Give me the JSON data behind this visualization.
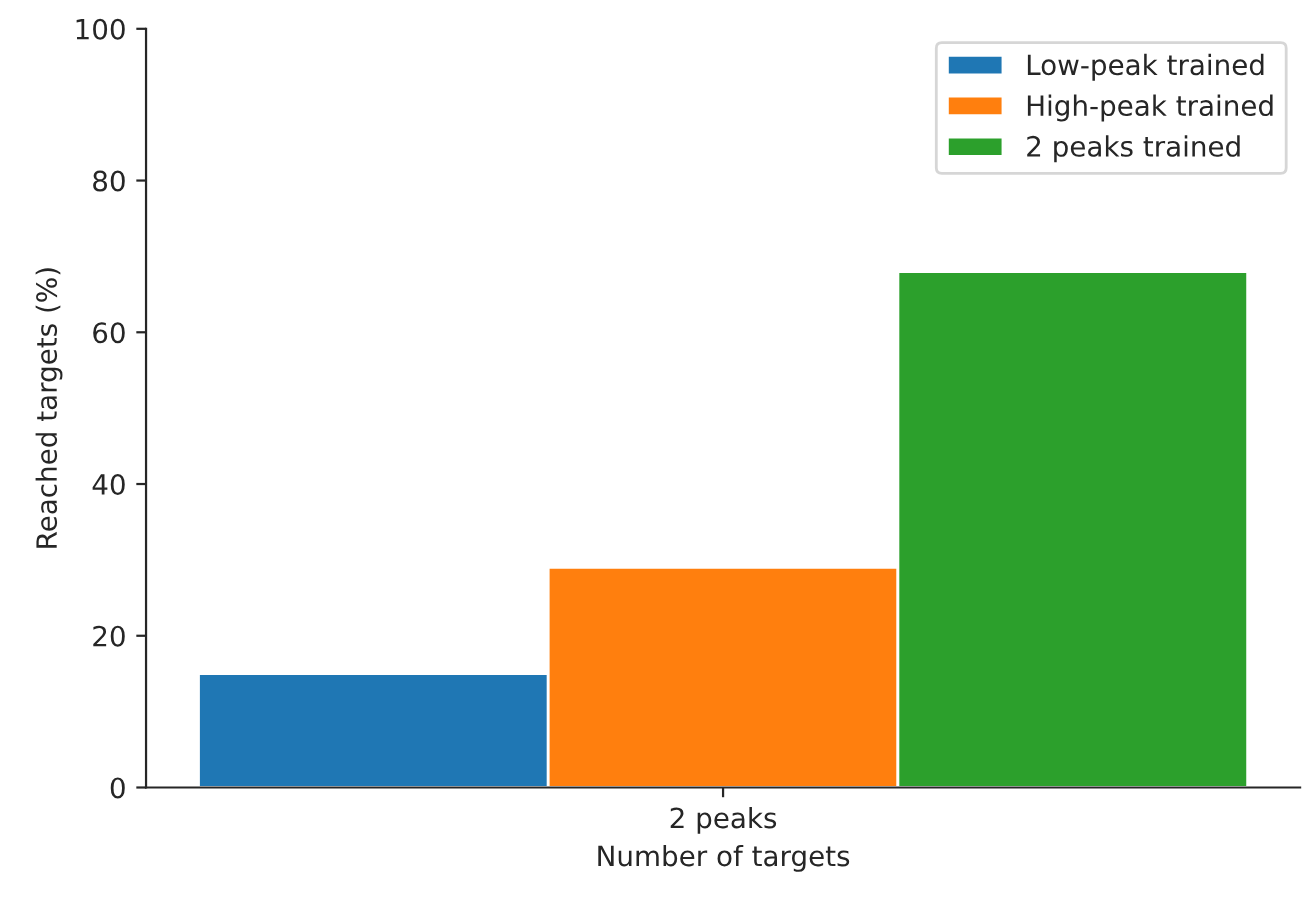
{
  "chart_data": {
    "type": "bar",
    "xlabel": "Number of targets",
    "ylabel": "Reached targets (%)",
    "categories": [
      "2 peaks"
    ],
    "series": [
      {
        "name": "Low-peak trained",
        "color": "#1f77b4",
        "values": [
          15
        ]
      },
      {
        "name": "High-peak trained",
        "color": "#ff7f0e",
        "values": [
          29
        ]
      },
      {
        "name": "2 peaks trained",
        "color": "#2ca02c",
        "values": [
          68
        ]
      }
    ],
    "ylim": [
      0,
      100
    ],
    "yticks": [
      0,
      20,
      40,
      60,
      80,
      100
    ],
    "legend": "top right"
  }
}
